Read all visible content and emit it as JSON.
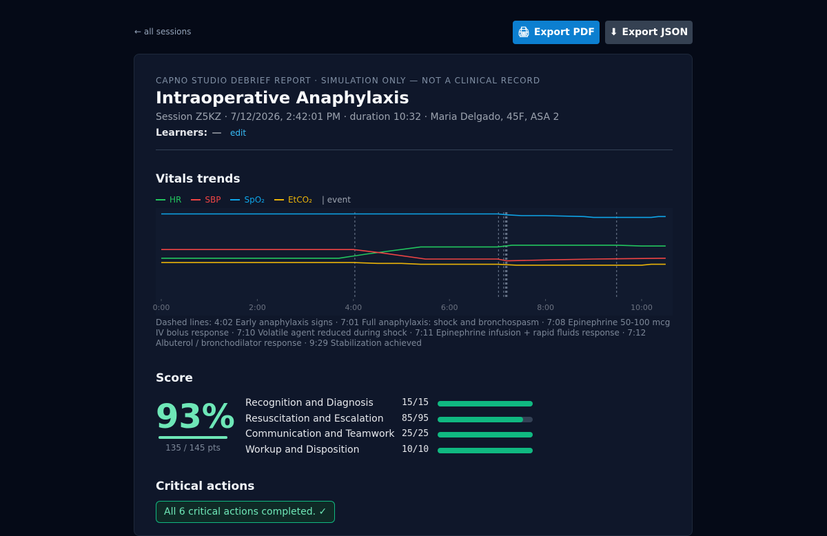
{
  "nav": {
    "back_label": "← all sessions"
  },
  "toolbar": {
    "export_pdf_icon": "🖨",
    "export_pdf_label": "Export PDF",
    "export_json_icon": "⬇",
    "export_json_label": "Export JSON"
  },
  "report": {
    "eyebrow": "CAPNO STUDIO DEBRIEF REPORT · SIMULATION ONLY — NOT A CLINICAL RECORD",
    "title": "Intraoperative Anaphylaxis",
    "meta": "Session Z5KZ · 7/12/2026, 2:42:01 PM · duration 10:32 · Maria Delgado, 45F, ASA 2",
    "learners_label": "Learners:",
    "learners_value": "—",
    "edit_label": "edit"
  },
  "vitals": {
    "heading": "Vitals trends",
    "legend": [
      {
        "name": "HR",
        "color": "#22c55e"
      },
      {
        "name": "SBP",
        "color": "#ef4444"
      },
      {
        "name": "SpO₂",
        "color": "#0ea5e9"
      },
      {
        "name": "EtCO₂",
        "color": "#eab308"
      }
    ],
    "event_legend": "| event",
    "events_note": "Dashed lines: 4:02 Early anaphylaxis signs · 7:01 Full anaphylaxis: shock and bronchospasm · 7:08 Epinephrine 50-100 mcg IV bolus response · 7:10 Volatile agent reduced during shock · 7:11 Epinephrine infusion + rapid fluids response · 7:12 Albuterol / bronchodilator response · 9:29 Stabilization achieved"
  },
  "chart_data": {
    "type": "line",
    "x_unit": "minutes",
    "xlim": [
      0,
      10.53
    ],
    "x_ticks": [
      "0:00",
      "2:00",
      "4:00",
      "6:00",
      "8:00",
      "10:00"
    ],
    "events_minutes": [
      4.03,
      7.02,
      7.13,
      7.17,
      7.18,
      7.2,
      9.48
    ],
    "series": [
      {
        "name": "HR",
        "color": "#22c55e",
        "x": [
          0,
          3.7,
          4.3,
          5.4,
          7.0,
          7.3,
          9.5,
          10.0,
          10.5
        ],
        "y": [
          0.47,
          0.47,
          0.52,
          0.6,
          0.6,
          0.62,
          0.62,
          0.61,
          0.61
        ]
      },
      {
        "name": "SBP",
        "color": "#ef4444",
        "x": [
          0,
          4.0,
          4.6,
          5.5,
          7.0,
          7.2,
          8.0,
          9.0,
          10.5
        ],
        "y": [
          0.57,
          0.57,
          0.53,
          0.46,
          0.46,
          0.44,
          0.45,
          0.46,
          0.47
        ]
      },
      {
        "name": "SpO₂",
        "color": "#0ea5e9",
        "x": [
          0,
          7.0,
          7.2,
          7.5,
          8.0,
          8.8,
          9.0,
          10.2,
          10.35,
          10.5
        ],
        "y": [
          0.98,
          0.98,
          0.97,
          0.96,
          0.96,
          0.95,
          0.94,
          0.94,
          0.95,
          0.95
        ]
      },
      {
        "name": "EtCO₂",
        "color": "#eab308",
        "x": [
          0,
          4.0,
          4.5,
          5.0,
          5.4,
          7.0,
          7.4,
          10.0,
          10.2,
          10.5
        ],
        "y": [
          0.42,
          0.42,
          0.41,
          0.41,
          0.4,
          0.4,
          0.39,
          0.39,
          0.4,
          0.4
        ]
      }
    ]
  },
  "score": {
    "heading": "Score",
    "percent": "93%",
    "points": "135 / 145 pts",
    "rows": [
      {
        "name": "Recognition and Diagnosis",
        "value": "15/15",
        "fraction": 1.0
      },
      {
        "name": "Resuscitation and Escalation",
        "value": "85/95",
        "fraction": 0.895
      },
      {
        "name": "Communication and Teamwork",
        "value": "25/25",
        "fraction": 1.0
      },
      {
        "name": "Workup and Disposition",
        "value": "10/10",
        "fraction": 1.0
      }
    ]
  },
  "critical": {
    "heading": "Critical actions",
    "status": "All 6 critical actions completed. ✓"
  }
}
